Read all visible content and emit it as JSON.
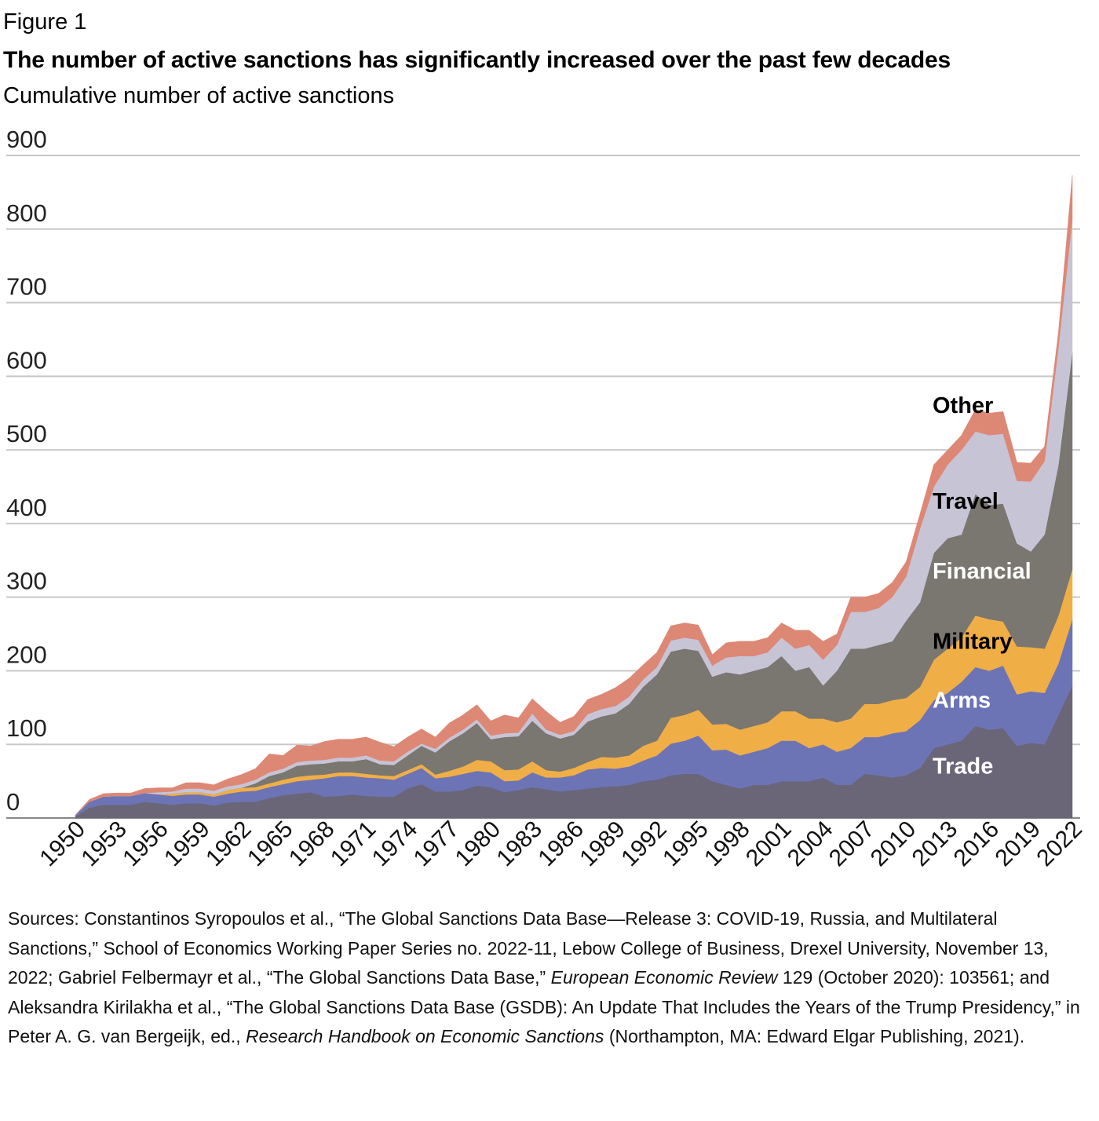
{
  "figure_label": "Figure 1",
  "title": "The number of active sanctions has significantly increased over the past few decades",
  "subtitle": "Cumulative number of active sanctions",
  "chart_data": {
    "type": "area",
    "stacked": true,
    "ylim": [
      0,
      900
    ],
    "yticks": [
      0,
      100,
      200,
      300,
      400,
      500,
      600,
      700,
      800,
      900
    ],
    "xlim": [
      1950,
      2022
    ],
    "xticks": [
      1950,
      1953,
      1956,
      1959,
      1962,
      1965,
      1968,
      1971,
      1974,
      1977,
      1980,
      1983,
      1986,
      1989,
      1992,
      1995,
      1998,
      2001,
      2004,
      2007,
      2010,
      2013,
      2016,
      2019,
      2022
    ],
    "grid": true,
    "legend": "inline labels at right",
    "x": [
      1950,
      1951,
      1952,
      1953,
      1954,
      1955,
      1956,
      1957,
      1958,
      1959,
      1960,
      1961,
      1962,
      1963,
      1964,
      1965,
      1966,
      1967,
      1968,
      1969,
      1970,
      1971,
      1972,
      1973,
      1974,
      1975,
      1976,
      1977,
      1978,
      1979,
      1980,
      1981,
      1982,
      1983,
      1984,
      1985,
      1986,
      1987,
      1988,
      1989,
      1990,
      1991,
      1992,
      1993,
      1994,
      1995,
      1996,
      1997,
      1998,
      1999,
      2000,
      2001,
      2002,
      2003,
      2004,
      2005,
      2006,
      2007,
      2008,
      2009,
      2010,
      2011,
      2012,
      2013,
      2014,
      2015,
      2016,
      2017,
      2018,
      2019,
      2020,
      2021,
      2022
    ],
    "series": [
      {
        "name": "Trade",
        "color": "#6b6578",
        "label_color": "#ffffff",
        "values": [
          2,
          14,
          18,
          18,
          18,
          22,
          20,
          18,
          20,
          20,
          17,
          21,
          22,
          22,
          27,
          31,
          33,
          35,
          29,
          30,
          32,
          30,
          29,
          29,
          40,
          46,
          36,
          36,
          38,
          44,
          42,
          35,
          38,
          42,
          39,
          36,
          38,
          40,
          42,
          43,
          45,
          50,
          52,
          58,
          60,
          60,
          50,
          45,
          40,
          45,
          45,
          50,
          50,
          50,
          55,
          45,
          45,
          60,
          58,
          55,
          58,
          68,
          95,
          100,
          105,
          125,
          120,
          122,
          98,
          102,
          100,
          140,
          180
        ]
      },
      {
        "name": "Arms",
        "color": "#6c74b6",
        "label_color": "#ffffff",
        "values": [
          2,
          8,
          11,
          12,
          12,
          12,
          12,
          12,
          12,
          12,
          12,
          12,
          14,
          15,
          15,
          15,
          17,
          17,
          25,
          27,
          25,
          25,
          25,
          23,
          20,
          22,
          18,
          20,
          22,
          20,
          20,
          15,
          13,
          20,
          16,
          19,
          20,
          26,
          26,
          24,
          25,
          28,
          33,
          43,
          45,
          52,
          42,
          48,
          45,
          45,
          50,
          55,
          55,
          45,
          45,
          45,
          50,
          50,
          52,
          60,
          60,
          65,
          65,
          70,
          80,
          80,
          80,
          85,
          70,
          70,
          70,
          70,
          90
        ]
      },
      {
        "name": "Military",
        "color": "#f0ae47",
        "label_color": "#000000",
        "values": [
          0,
          0,
          0,
          0,
          0,
          0,
          0,
          3,
          3,
          3,
          3,
          5,
          5,
          5,
          5,
          6,
          6,
          6,
          5,
          5,
          5,
          5,
          4,
          5,
          5,
          5,
          5,
          8,
          10,
          15,
          15,
          15,
          15,
          15,
          10,
          8,
          10,
          10,
          15,
          15,
          15,
          20,
          20,
          35,
          35,
          35,
          35,
          35,
          35,
          35,
          35,
          40,
          40,
          40,
          35,
          40,
          40,
          45,
          45,
          45,
          45,
          45,
          55,
          60,
          60,
          70,
          70,
          60,
          65,
          60,
          60,
          65,
          68
        ]
      },
      {
        "name": "Financial",
        "color": "#7a7670",
        "label_color": "#ffffff",
        "values": [
          0,
          0,
          0,
          0,
          0,
          0,
          0,
          0,
          0,
          0,
          0,
          0,
          0,
          5,
          10,
          10,
          15,
          15,
          15,
          15,
          15,
          20,
          15,
          15,
          20,
          25,
          30,
          40,
          45,
          50,
          30,
          45,
          45,
          55,
          50,
          45,
          45,
          55,
          55,
          60,
          70,
          80,
          90,
          90,
          90,
          80,
          65,
          70,
          75,
          75,
          75,
          75,
          55,
          70,
          45,
          70,
          95,
          75,
          80,
          80,
          105,
          115,
          145,
          150,
          140,
          165,
          155,
          160,
          140,
          130,
          155,
          205,
          295
        ]
      },
      {
        "name": "Travel",
        "color": "#c7c4d6",
        "label_color": "#000000",
        "values": [
          0,
          0,
          0,
          0,
          0,
          0,
          3,
          3,
          5,
          5,
          5,
          5,
          5,
          5,
          5,
          5,
          5,
          5,
          5,
          5,
          5,
          5,
          5,
          5,
          5,
          3,
          5,
          5,
          5,
          5,
          5,
          5,
          5,
          10,
          5,
          5,
          5,
          10,
          10,
          10,
          10,
          10,
          10,
          15,
          15,
          15,
          15,
          20,
          25,
          20,
          20,
          25,
          30,
          30,
          35,
          35,
          50,
          50,
          50,
          60,
          60,
          100,
          90,
          100,
          115,
          85,
          95,
          95,
          85,
          95,
          100,
          160,
          180
        ]
      },
      {
        "name": "Other",
        "color": "#dd8775",
        "label_color": "#000000",
        "values": [
          0,
          3,
          4,
          4,
          4,
          6,
          6,
          5,
          8,
          8,
          8,
          10,
          13,
          15,
          25,
          18,
          23,
          20,
          25,
          25,
          25,
          25,
          25,
          20,
          20,
          20,
          16,
          20,
          20,
          20,
          20,
          25,
          20,
          20,
          25,
          17,
          20,
          20,
          20,
          25,
          25,
          20,
          20,
          20,
          20,
          20,
          15,
          20,
          20,
          20,
          20,
          20,
          25,
          20,
          25,
          15,
          20,
          20,
          20,
          20,
          20,
          20,
          30,
          20,
          20,
          30,
          30,
          30,
          25,
          25,
          20,
          20,
          60
        ]
      }
    ],
    "label_positions_year": 2014
  },
  "sources": {
    "t1": "Sources: Constantinos Syropoulos et al., “The Global Sanctions Data Base—Release 3: COVID-19, Russia, and Multilateral Sanctions,” School of Economics Working Paper Series no. 2022-11, Lebow College of Business, Drexel University, November 13, 2022; Gabriel Felbermayr et al., “The Global Sanctions Data Base,” ",
    "i1": "European Economic Review",
    "t2": " 129 (October 2020): 103561; and Aleksandra Kirilakha et al., “The Global Sanctions Data Base (GSDB): An Update That Includes the Years of the Trump Presidency,” in Peter A. G. van Bergeijk, ed., ",
    "i2": "Research Handbook on Economic Sanctions",
    "t3": " (Northampton, MA: Edward Elgar Publishing, 2021)."
  }
}
